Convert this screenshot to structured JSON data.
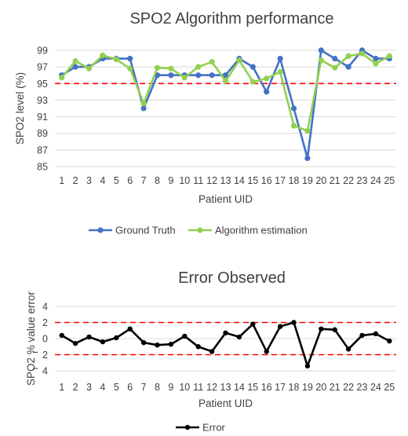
{
  "chart_data": [
    {
      "type": "line",
      "title": "SPO2 Algorithm performance",
      "xlabel": "Patient UID",
      "ylabel": "SPO2 level (%)",
      "ylim": [
        85,
        99
      ],
      "yticks": [
        85,
        87,
        89,
        91,
        93,
        95,
        97,
        99
      ],
      "grid": true,
      "legend": "bottom",
      "reference_lines": [
        95
      ],
      "reference_color": "#ff0000",
      "categories": [
        "1",
        "2",
        "3",
        "4",
        "5",
        "6",
        "7",
        "8",
        "9",
        "10",
        "11",
        "12",
        "13",
        "14",
        "15",
        "16",
        "17",
        "18",
        "19",
        "20",
        "21",
        "22",
        "23",
        "24",
        "25"
      ],
      "series": [
        {
          "name": "Ground Truth",
          "color": "#4472c4",
          "values": [
            96,
            97,
            97,
            98,
            98,
            98,
            92,
            96,
            96,
            96,
            96,
            96,
            96,
            98,
            97,
            94,
            98,
            92,
            86,
            99,
            98,
            97,
            99,
            98,
            98
          ]
        },
        {
          "name": "Algorithm estimation",
          "color": "#92d050",
          "values": [
            95.7,
            97.7,
            96.8,
            98.4,
            97.9,
            96.8,
            92.6,
            96.9,
            96.8,
            95.7,
            97.0,
            97.6,
            95.3,
            97.8,
            95.2,
            95.6,
            96.4,
            89.9,
            89.3,
            97.8,
            96.9,
            98.3,
            98.6,
            97.4,
            98.3
          ]
        }
      ]
    },
    {
      "type": "line",
      "title": "Error Observed",
      "xlabel": "Patient UID",
      "ylabel": "SPO2 % value error",
      "ylim": [
        -4,
        4
      ],
      "yticks": [
        -4,
        -2,
        0,
        2,
        4
      ],
      "ytick_labels": [
        "4",
        "2",
        "0",
        "2",
        "4"
      ],
      "grid": true,
      "legend": "bottom",
      "reference_lines": [
        2,
        -2
      ],
      "reference_color": "#ff0000",
      "categories": [
        "1",
        "2",
        "3",
        "4",
        "5",
        "6",
        "7",
        "8",
        "9",
        "10",
        "11",
        "12",
        "13",
        "14",
        "15",
        "16",
        "17",
        "18",
        "19",
        "20",
        "21",
        "22",
        "23",
        "24",
        "25"
      ],
      "series": [
        {
          "name": "Error",
          "color": "#000000",
          "values": [
            0.4,
            -0.6,
            0.2,
            -0.4,
            0.1,
            1.2,
            -0.5,
            -0.8,
            -0.7,
            0.3,
            -1.0,
            -1.6,
            0.7,
            0.2,
            1.8,
            -1.6,
            1.5,
            2.0,
            -3.4,
            1.2,
            1.1,
            -1.3,
            0.4,
            0.6,
            -0.3
          ]
        }
      ]
    }
  ]
}
